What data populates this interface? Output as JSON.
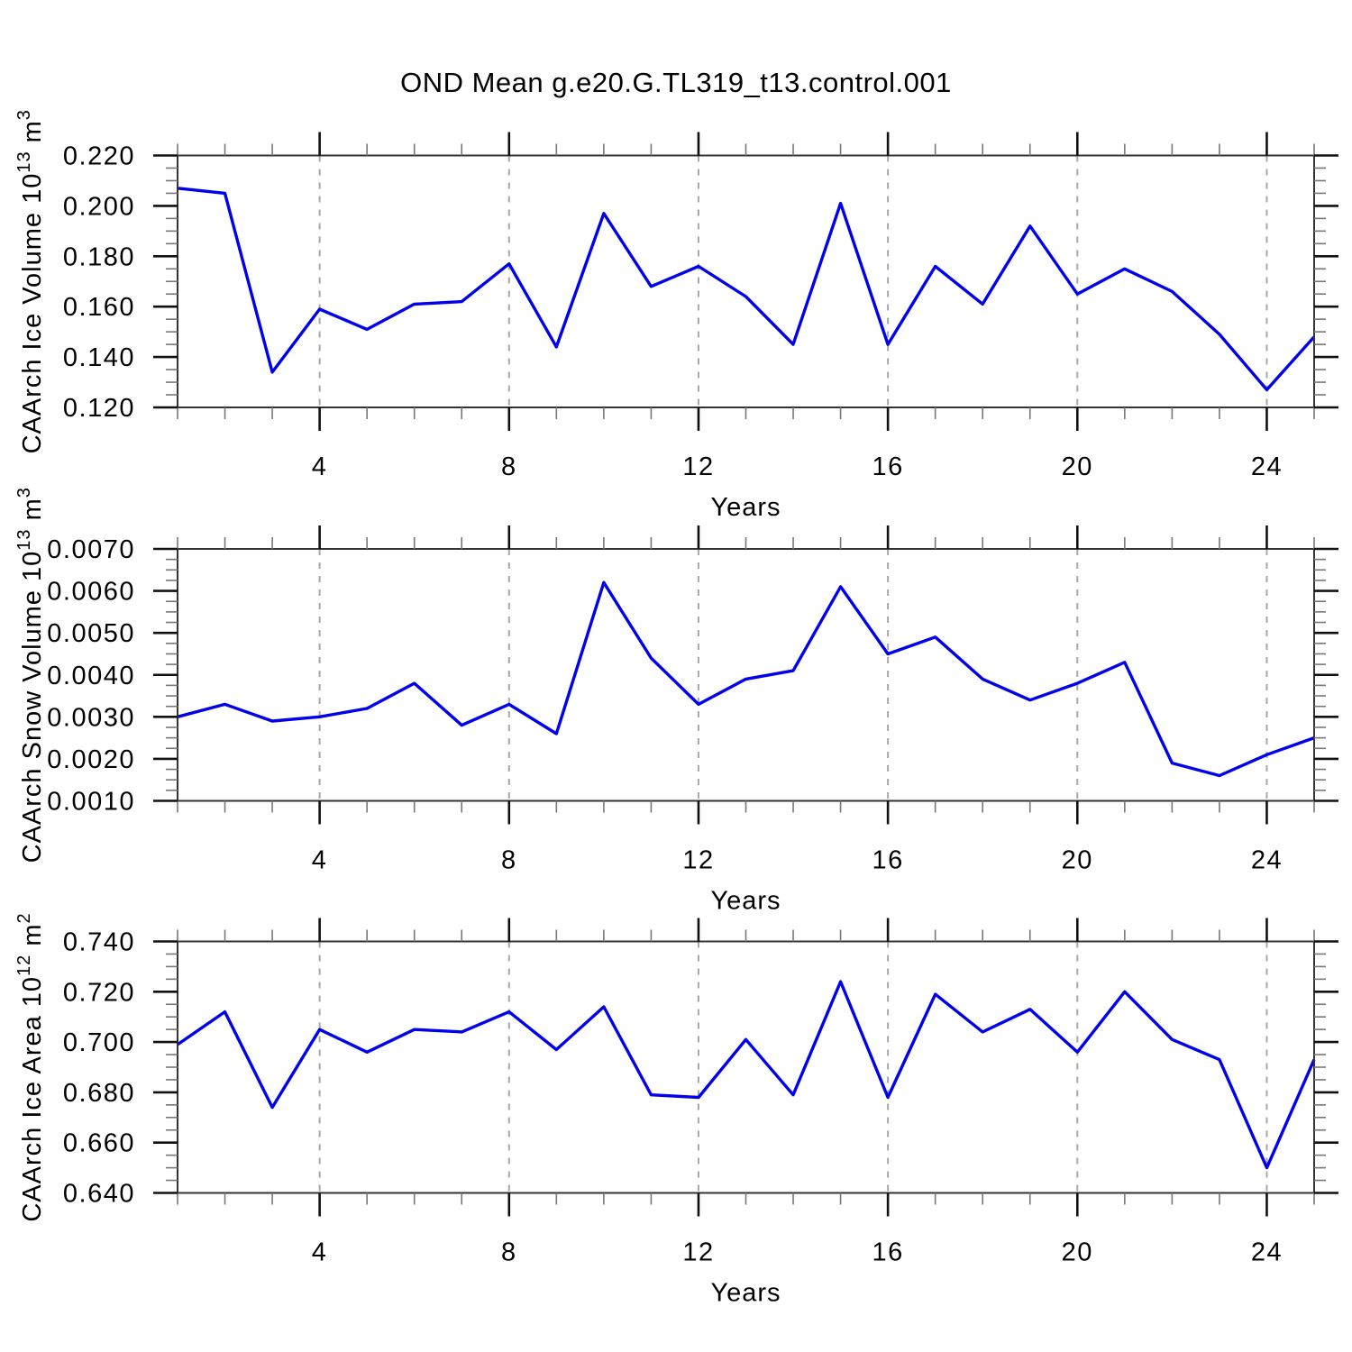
{
  "title": "OND Mean g.e20.G.TL319_t13.control.001",
  "colors": {
    "line": "#0000ee",
    "grid": "#a8a8a8",
    "axis": "#333333",
    "tick_major": "#111111",
    "tick_minor": "#777777",
    "text": "#000000"
  },
  "chart_data": [
    {
      "id": "ice-volume",
      "type": "line",
      "title": "CAArch Ice Volume 10^13 m^3",
      "ylabel": "CAArch Ice Volume 10^13 m^3",
      "ylabel_parts": [
        {
          "t": "CAArch Ice Volume 10"
        },
        {
          "t": "13",
          "sup": true
        },
        {
          "t": " m"
        },
        {
          "t": "3",
          "sup": true
        }
      ],
      "xlabel": "Years",
      "x": [
        1,
        2,
        3,
        4,
        5,
        6,
        7,
        8,
        9,
        10,
        11,
        12,
        13,
        14,
        15,
        16,
        17,
        18,
        19,
        20,
        21,
        22,
        23,
        24,
        25
      ],
      "y": [
        0.207,
        0.205,
        0.134,
        0.159,
        0.151,
        0.161,
        0.162,
        0.177,
        0.144,
        0.197,
        0.168,
        0.176,
        0.164,
        0.145,
        0.201,
        0.145,
        0.176,
        0.161,
        0.192,
        0.165,
        0.175,
        0.166,
        0.149,
        0.127,
        0.148
      ],
      "xlim": [
        1,
        25
      ],
      "ylim": [
        0.12,
        0.22
      ],
      "xticks": {
        "values": [
          4,
          8,
          12,
          16,
          20,
          24
        ],
        "labels": [
          "4",
          "8",
          "12",
          "16",
          "20",
          "24"
        ],
        "minor_step": 1
      },
      "yticks": {
        "values": [
          0.22,
          0.2,
          0.18,
          0.16,
          0.14,
          0.12
        ],
        "labels": [
          "0.220",
          "0.200",
          "0.180",
          "0.160",
          "0.140",
          "0.120"
        ],
        "minor_step": 0.005
      },
      "grid": "vertical-dashed-at-major-x",
      "legend": "none"
    },
    {
      "id": "snow-volume",
      "type": "line",
      "title": "CAArch Snow Volume 10^13 m^3",
      "ylabel": "CAArch Snow Volume 10^13 m^3",
      "ylabel_parts": [
        {
          "t": "CAArch Snow Volume 10"
        },
        {
          "t": "13",
          "sup": true
        },
        {
          "t": " m"
        },
        {
          "t": "3",
          "sup": true
        }
      ],
      "xlabel": "Years",
      "x": [
        1,
        2,
        3,
        4,
        5,
        6,
        7,
        8,
        9,
        10,
        11,
        12,
        13,
        14,
        15,
        16,
        17,
        18,
        19,
        20,
        21,
        22,
        23,
        24,
        25
      ],
      "y": [
        0.003,
        0.0033,
        0.0029,
        0.003,
        0.0032,
        0.0038,
        0.0028,
        0.0033,
        0.0026,
        0.0062,
        0.0044,
        0.0033,
        0.0039,
        0.0041,
        0.0061,
        0.0045,
        0.0049,
        0.0039,
        0.0034,
        0.0038,
        0.0043,
        0.0019,
        0.0016,
        0.0021,
        0.0025
      ],
      "xlim": [
        1,
        25
      ],
      "ylim": [
        0.001,
        0.007
      ],
      "xticks": {
        "values": [
          4,
          8,
          12,
          16,
          20,
          24
        ],
        "labels": [
          "4",
          "8",
          "12",
          "16",
          "20",
          "24"
        ],
        "minor_step": 1
      },
      "yticks": {
        "values": [
          0.007,
          0.006,
          0.005,
          0.004,
          0.003,
          0.002,
          0.001
        ],
        "labels": [
          "0.0070",
          "0.0060",
          "0.0050",
          "0.0040",
          "0.0030",
          "0.0020",
          "0.0010"
        ],
        "minor_step": 0.00025
      },
      "grid": "vertical-dashed-at-major-x",
      "legend": "none"
    },
    {
      "id": "ice-area",
      "type": "line",
      "title": "CAArch Ice Area 10^12 m^2",
      "ylabel": "CAArch Ice Area 10^12 m^2",
      "ylabel_parts": [
        {
          "t": "CAArch Ice Area 10"
        },
        {
          "t": "12",
          "sup": true
        },
        {
          "t": " m"
        },
        {
          "t": "2",
          "sup": true
        }
      ],
      "xlabel": "Years",
      "x": [
        1,
        2,
        3,
        4,
        5,
        6,
        7,
        8,
        9,
        10,
        11,
        12,
        13,
        14,
        15,
        16,
        17,
        18,
        19,
        20,
        21,
        22,
        23,
        24,
        25
      ],
      "y": [
        0.699,
        0.712,
        0.674,
        0.705,
        0.696,
        0.705,
        0.704,
        0.712,
        0.697,
        0.714,
        0.679,
        0.678,
        0.701,
        0.679,
        0.724,
        0.678,
        0.719,
        0.704,
        0.713,
        0.696,
        0.72,
        0.701,
        0.693,
        0.65,
        0.693
      ],
      "xlim": [
        1,
        25
      ],
      "ylim": [
        0.64,
        0.74
      ],
      "xticks": {
        "values": [
          4,
          8,
          12,
          16,
          20,
          24
        ],
        "labels": [
          "4",
          "8",
          "12",
          "16",
          "20",
          "24"
        ],
        "minor_step": 1
      },
      "yticks": {
        "values": [
          0.74,
          0.72,
          0.7,
          0.68,
          0.66,
          0.64
        ],
        "labels": [
          "0.740",
          "0.720",
          "0.700",
          "0.680",
          "0.660",
          "0.640"
        ],
        "minor_step": 0.005
      },
      "grid": "vertical-dashed-at-major-x",
      "legend": "none"
    }
  ]
}
